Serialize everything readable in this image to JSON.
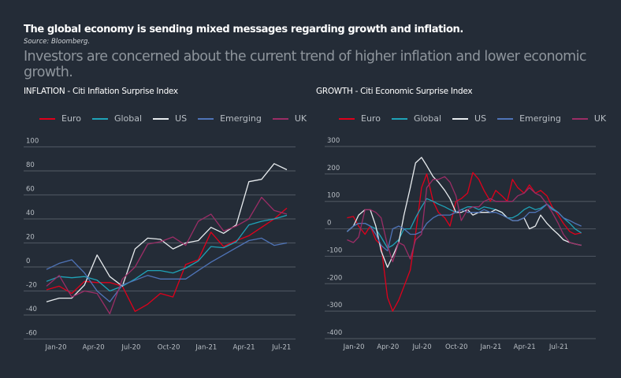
{
  "header": {
    "title": "The global economy is sending mixed messages regarding growth and inflation.",
    "source": "Source: Bloomberg.",
    "subtitle": "Investors are concerned about the current trend of higher inflation and lower economic growth."
  },
  "colors": {
    "Euro": "#e0001b",
    "Global": "#1fa3b8",
    "US": "#e8ecef",
    "Emerging": "#4f74b8",
    "UK": "#9b2d66",
    "grid": "#4a525c",
    "background": "#242c37"
  },
  "chart_data": [
    {
      "type": "line",
      "title": "INFLATION - Citi Inflation Surprise Index",
      "legend": [
        "Euro",
        "Global",
        "US",
        "Emerging",
        "UK"
      ],
      "legend_position": "top",
      "grid": true,
      "ylim": [
        -60,
        100
      ],
      "yticks": [
        "100",
        "80",
        "60",
        "40",
        "20",
        "0",
        "-20",
        "-40",
        "-60"
      ],
      "xticks": [
        "Jan-20",
        "Apr-20",
        "Jul-20",
        "Oct-20",
        "Jan-21",
        "Apr-21",
        "Jul-21"
      ],
      "x": [
        "Dec-19",
        "Jan-20",
        "Feb-20",
        "Mar-20",
        "Apr-20",
        "May-20",
        "Jun-20",
        "Jul-20",
        "Aug-20",
        "Sep-20",
        "Oct-20",
        "Nov-20",
        "Dec-20",
        "Jan-21",
        "Feb-21",
        "Mar-21",
        "Apr-21",
        "May-21",
        "Jun-21",
        "Jul-21"
      ],
      "series": [
        {
          "name": "Euro",
          "values": [
            -19,
            -16,
            -22,
            -12,
            -13,
            -13,
            -16,
            -37,
            -31,
            -22,
            -25,
            2,
            6,
            29,
            17,
            22,
            26,
            33,
            40,
            49
          ]
        },
        {
          "name": "Global",
          "values": [
            -12,
            -8,
            -9,
            -8,
            -11,
            -20,
            -16,
            -10,
            -3,
            -3,
            -5,
            -1,
            5,
            17,
            16,
            21,
            35,
            38,
            40,
            43
          ]
        },
        {
          "name": "US",
          "values": [
            -29,
            -26,
            -26,
            -15,
            10,
            -8,
            -16,
            15,
            24,
            23,
            15,
            20,
            22,
            33,
            28,
            35,
            71,
            73,
            86,
            81
          ]
        },
        {
          "name": "Emerging",
          "values": [
            -2,
            3,
            6,
            -5,
            -20,
            -29,
            -15,
            -11,
            -7,
            -10,
            -10,
            -10,
            -3,
            4,
            10,
            16,
            22,
            24,
            18,
            20
          ]
        },
        {
          "name": "UK",
          "values": [
            -16,
            -7,
            -25,
            -20,
            -22,
            -39,
            -10,
            0,
            19,
            21,
            25,
            18,
            38,
            44,
            30,
            34,
            40,
            58,
            47,
            44
          ]
        }
      ]
    },
    {
      "type": "line",
      "title": "GROWTH - Citi Economic Surprise Index",
      "legend": [
        "Euro",
        "Global",
        "US",
        "Emerging",
        "UK"
      ],
      "legend_position": "top",
      "grid": true,
      "ylim": [
        -400,
        300
      ],
      "yticks": [
        "300",
        "200",
        "100",
        "0",
        "-100",
        "-200",
        "-300",
        "-400"
      ],
      "xticks": [
        "Jan-20",
        "Apr-20",
        "Jul-20",
        "Oct-20",
        "Jan-21",
        "Apr-21",
        "Jul-21"
      ],
      "x": [
        "2019-12-15",
        "2020-01-01",
        "2020-01-15",
        "2020-02-01",
        "2020-02-15",
        "2020-03-01",
        "2020-03-15",
        "2020-04-01",
        "2020-04-15",
        "2020-05-01",
        "2020-05-15",
        "2020-06-01",
        "2020-06-15",
        "2020-07-01",
        "2020-07-15",
        "2020-08-01",
        "2020-08-15",
        "2020-09-01",
        "2020-09-15",
        "2020-10-01",
        "2020-10-15",
        "2020-11-01",
        "2020-11-15",
        "2020-12-01",
        "2020-12-15",
        "2021-01-01",
        "2021-01-15",
        "2021-02-01",
        "2021-02-15",
        "2021-03-01",
        "2021-03-15",
        "2021-04-01",
        "2021-04-15",
        "2021-05-01",
        "2021-05-15",
        "2021-06-01",
        "2021-06-15",
        "2021-07-01",
        "2021-07-15",
        "2021-08-01",
        "2021-08-15",
        "2021-09-01"
      ],
      "series": [
        {
          "name": "Euro",
          "values": [
            40,
            45,
            10,
            -20,
            10,
            -40,
            -60,
            -250,
            -300,
            -260,
            -210,
            -150,
            -20,
            150,
            200,
            100,
            60,
            40,
            10,
            100,
            110,
            130,
            205,
            180,
            140,
            100,
            140,
            120,
            100,
            180,
            150,
            130,
            160,
            130,
            140,
            120,
            80,
            50,
            20,
            -10,
            -20,
            -15
          ]
        },
        {
          "name": "Global",
          "values": [
            -10,
            10,
            20,
            20,
            10,
            0,
            -30,
            -70,
            -60,
            -40,
            0,
            0,
            40,
            80,
            110,
            100,
            90,
            80,
            70,
            60,
            70,
            80,
            80,
            70,
            80,
            75,
            70,
            60,
            40,
            40,
            50,
            70,
            80,
            70,
            75,
            90,
            75,
            60,
            40,
            20,
            0,
            -15
          ]
        },
        {
          "name": "US",
          "values": [
            -10,
            10,
            50,
            70,
            70,
            10,
            -80,
            -140,
            -100,
            -50,
            50,
            150,
            240,
            260,
            230,
            190,
            170,
            140,
            110,
            60,
            60,
            70,
            50,
            60,
            60,
            60,
            70,
            60,
            40,
            30,
            30,
            40,
            0,
            10,
            50,
            20,
            0,
            -20,
            -40,
            -50,
            -55,
            -60
          ]
        },
        {
          "name": "Emerging",
          "values": [
            -10,
            10,
            20,
            20,
            10,
            -20,
            -60,
            -80,
            0,
            10,
            0,
            -20,
            -20,
            -10,
            20,
            40,
            50,
            50,
            50,
            60,
            70,
            60,
            60,
            60,
            70,
            60,
            60,
            50,
            40,
            30,
            30,
            40,
            60,
            60,
            70,
            90,
            70,
            60,
            40,
            30,
            20,
            10
          ]
        },
        {
          "name": "UK",
          "values": [
            -40,
            -50,
            -30,
            70,
            70,
            60,
            40,
            -60,
            -120,
            -50,
            -60,
            -110,
            -40,
            -20,
            150,
            180,
            180,
            190,
            170,
            120,
            30,
            70,
            80,
            80,
            100,
            110,
            100,
            100,
            100,
            100,
            120,
            130,
            150,
            130,
            120,
            90,
            60,
            20,
            -20,
            -50,
            -55,
            -60
          ]
        }
      ]
    }
  ]
}
